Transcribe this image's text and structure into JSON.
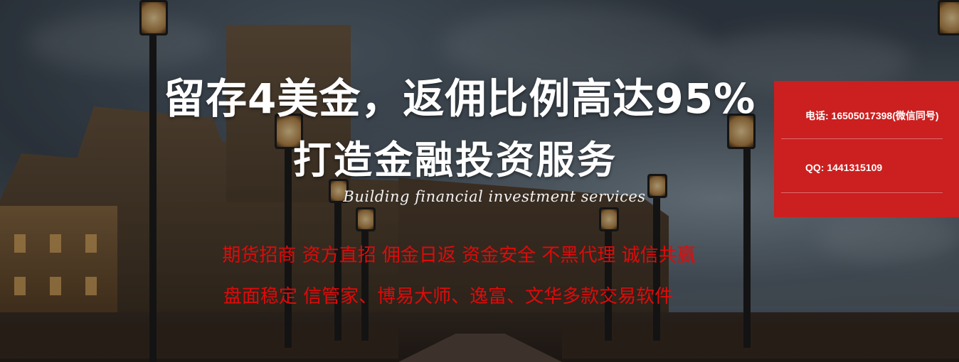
{
  "banner": {
    "headline": "留存4美金，返佣比例高达95%",
    "subheadline": "打造金融投资服务",
    "english_tagline": "Building financial investment services",
    "features_line1": "期货招商 资方直招 佣金日返 资金安全 不黑代理 诚信共赢",
    "features_line2": "盘面稳定  信管家、博易大师、逸富、文华多款交易软件"
  },
  "contact_panel": {
    "phone_line": "电话: 16505017398(微信同号)",
    "qq_line": "QQ: 1441315109"
  },
  "colors": {
    "accent_red_text": "#e00a0a",
    "panel_background": "#cc1f1f",
    "headline_text": "#ffffff"
  }
}
